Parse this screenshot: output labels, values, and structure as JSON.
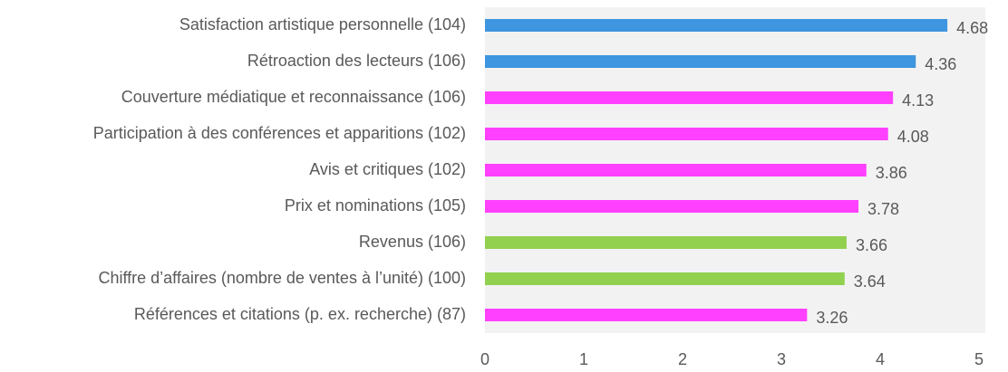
{
  "chart_data": {
    "type": "hbar",
    "categories": [
      "Satisfaction artistique personnelle (104)",
      "Rétroaction des lecteurs (106)",
      "Couverture médiatique et reconnaissance (106)",
      "Participation à des conférences et apparitions (102)",
      "Avis et critiques (102)",
      "Prix et nominations (105)",
      "Revenus (106)",
      "Chiffre d’affaires (nombre de ventes à l’unité) (100)",
      "Références et citations (p. ex. recherche) (87)"
    ],
    "values": [
      4.68,
      4.36,
      4.13,
      4.08,
      3.86,
      3.78,
      3.66,
      3.64,
      3.26
    ],
    "colors": [
      "#3e95e0",
      "#3e95e0",
      "#ff40ff",
      "#ff40ff",
      "#ff40ff",
      "#ff40ff",
      "#92d050",
      "#92d050",
      "#ff40ff"
    ],
    "xlim": [
      0,
      5
    ],
    "xticks": [
      0,
      1,
      2,
      3,
      4,
      5
    ],
    "grid": false
  }
}
